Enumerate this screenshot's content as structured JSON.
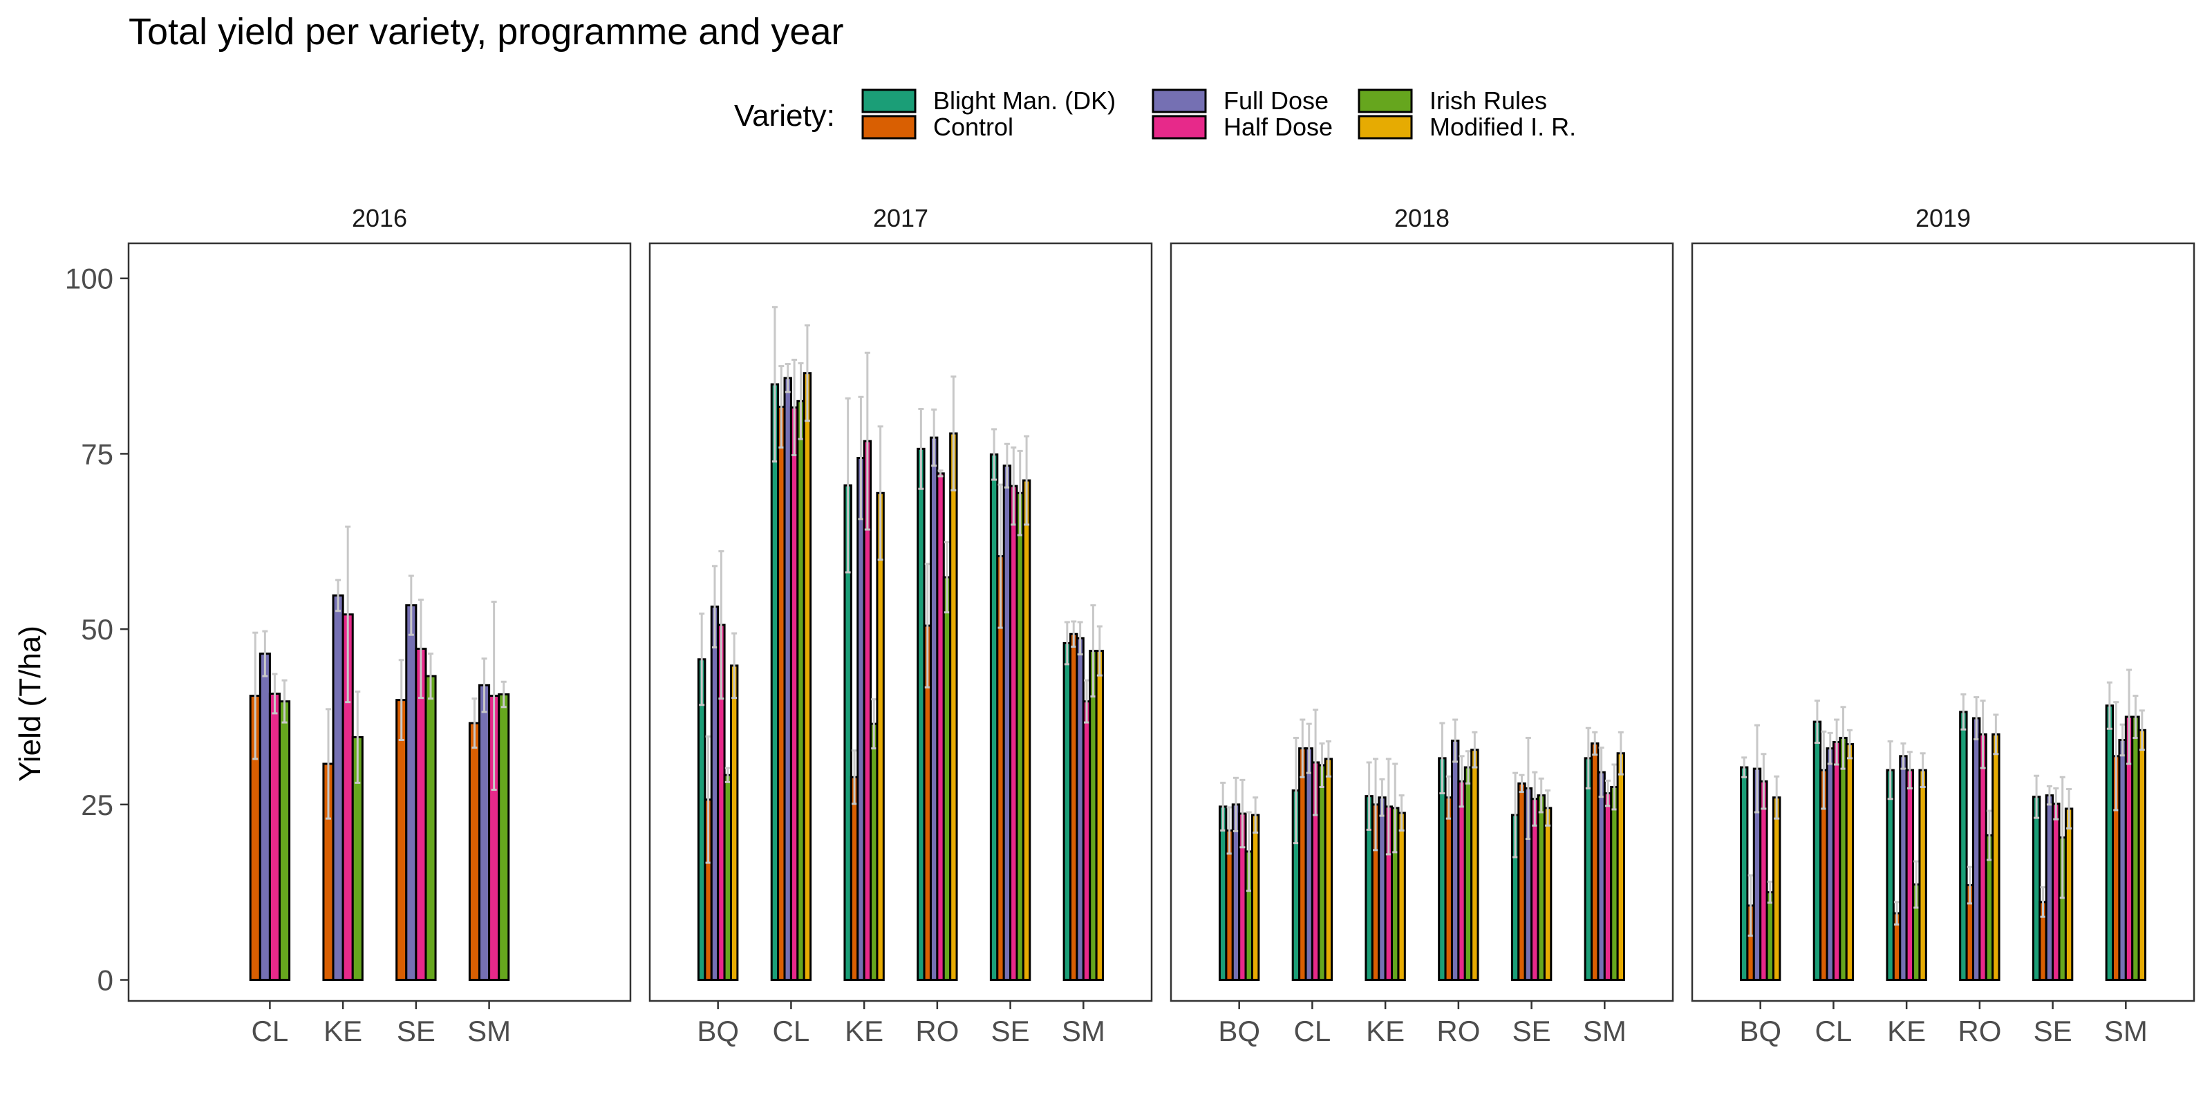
{
  "chart_data": {
    "type": "bar",
    "title": "Total yield per variety, programme and year",
    "ylabel": "Yield (T/ha)",
    "xlabel": "",
    "ylim": [
      -3,
      105
    ],
    "yticks": [
      0,
      25,
      50,
      75,
      100
    ],
    "grid": false,
    "legend": {
      "title": "Variety:",
      "placement": "top",
      "entries": [
        {
          "name": "Blight Man. (DK)",
          "color": "#1B9E77"
        },
        {
          "name": "Control",
          "color": "#D95F02"
        },
        {
          "name": "Full Dose",
          "color": "#7570B3"
        },
        {
          "name": "Half Dose",
          "color": "#E7298A"
        },
        {
          "name": "Irish Rules",
          "color": "#66A61E"
        },
        {
          "name": "Modified I. R.",
          "color": "#E6AB02"
        }
      ]
    },
    "series_order": [
      "Blight Man. (DK)",
      "Control",
      "Full Dose",
      "Half Dose",
      "Irish Rules",
      "Modified I. R."
    ],
    "panels": [
      {
        "year": "2016",
        "series_present": [
          "Control",
          "Full Dose",
          "Half Dose",
          "Irish Rules"
        ],
        "groups": [
          {
            "category": "CL",
            "values": [
              null,
              40.5,
              46.5,
              40.8,
              39.7,
              null
            ],
            "errors": [
              null,
              9,
              3.2,
              2.8,
              3,
              null
            ]
          },
          {
            "category": "KE",
            "values": [
              null,
              30.8,
              54.8,
              52.1,
              34.6,
              null
            ],
            "errors": [
              null,
              7.8,
              2.2,
              12.5,
              6.5,
              null
            ]
          },
          {
            "category": "SE",
            "values": [
              null,
              39.9,
              53.4,
              47.2,
              43.3,
              null
            ],
            "errors": [
              null,
              5.7,
              4.2,
              7,
              3.2,
              null
            ]
          },
          {
            "category": "SM",
            "values": [
              null,
              36.6,
              42,
              40.5,
              40.7,
              null
            ],
            "errors": [
              null,
              3.5,
              3.8,
              13.4,
              1.8,
              null
            ]
          }
        ]
      },
      {
        "year": "2017",
        "series_present": [
          "Blight Man. (DK)",
          "Control",
          "Full Dose",
          "Half Dose",
          "Irish Rules",
          "Modified I. R."
        ],
        "groups": [
          {
            "category": "BQ",
            "values": [
              45.7,
              25.7,
              53.2,
              50.6,
              29.2,
              44.8
            ],
            "errors": [
              6.5,
              9,
              5.8,
              10.5,
              1,
              4.6
            ]
          },
          {
            "category": "CL",
            "values": [
              84.9,
              81.7,
              85.8,
              81.6,
              82.5,
              86.5
            ],
            "errors": [
              11,
              5.8,
              2,
              6.8,
              5.4,
              6.8
            ]
          },
          {
            "category": "KE",
            "values": [
              70.5,
              28.9,
              74.4,
              76.8,
              36.5,
              69.4
            ],
            "errors": [
              12.4,
              3.8,
              8.7,
              12.6,
              3.5,
              9.5
            ]
          },
          {
            "category": "RO",
            "values": [
              75.7,
              50.5,
              77.3,
              72.2,
              57.4,
              77.9
            ],
            "errors": [
              5.7,
              8.8,
              4,
              0.4,
              5,
              8.1
            ]
          },
          {
            "category": "SE",
            "values": [
              74.9,
              60.4,
              73.3,
              70.4,
              69.4,
              71.2
            ],
            "errors": [
              3.6,
              10.2,
              3.1,
              5.5,
              6,
              6.3
            ]
          },
          {
            "category": "SM",
            "values": [
              48,
              49.3,
              48.7,
              39.7,
              46.9,
              46.9
            ],
            "errors": [
              3,
              1.8,
              2.3,
              3,
              6.5,
              3.5
            ]
          }
        ]
      },
      {
        "year": "2018",
        "series_present": [
          "Blight Man. (DK)",
          "Control",
          "Full Dose",
          "Half Dose",
          "Irish Rules",
          "Modified I. R."
        ],
        "groups": [
          {
            "category": "BQ",
            "values": [
              24.7,
              21.3,
              25,
              23.7,
              18.3,
              23.5
            ],
            "errors": [
              3.4,
              3.3,
              3.8,
              4.8,
              5.6,
              2.5
            ]
          },
          {
            "category": "CL",
            "values": [
              27,
              33,
              33,
              31,
              30.6,
              31.5
            ],
            "errors": [
              7.5,
              4.1,
              3.5,
              7.5,
              3.1,
              2.5
            ]
          },
          {
            "category": "KE",
            "values": [
              26.2,
              25,
              26,
              24.7,
              24.5,
              23.8
            ],
            "errors": [
              4.8,
              6.5,
              2.6,
              6.8,
              6.3,
              2.5
            ]
          },
          {
            "category": "RO",
            "values": [
              31.6,
              26,
              34.1,
              28.3,
              30.3,
              32.8
            ],
            "errors": [
              5,
              3,
              3,
              3.6,
              2.3,
              2.5
            ]
          },
          {
            "category": "SE",
            "values": [
              23.5,
              28,
              27.3,
              25.8,
              26.3,
              24.5
            ],
            "errors": [
              6,
              1.2,
              7.2,
              3.8,
              2.4,
              2.5
            ]
          },
          {
            "category": "SM",
            "values": [
              31.6,
              33.7,
              29.6,
              26.6,
              27.5,
              32.3
            ],
            "errors": [
              4.3,
              1.6,
              3.5,
              1.8,
              3.2,
              3
            ]
          }
        ]
      },
      {
        "year": "2019",
        "series_present": [
          "Blight Man. (DK)",
          "Control",
          "Full Dose",
          "Half Dose",
          "Irish Rules",
          "Modified I. R."
        ],
        "groups": [
          {
            "category": "BQ",
            "values": [
              30.3,
              10.6,
              30.1,
              28.3,
              12.5,
              26
            ],
            "errors": [
              1.4,
              4.3,
              6.2,
              3.9,
              1.5,
              3
            ]
          },
          {
            "category": "CL",
            "values": [
              36.8,
              29.9,
              33,
              33.9,
              34.5,
              33.6
            ],
            "errors": [
              3,
              5.5,
              2.2,
              3.2,
              4.4,
              2
            ]
          },
          {
            "category": "KE",
            "values": [
              29.9,
              9.5,
              31.9,
              29.9,
              13.6,
              29.9
            ],
            "errors": [
              4.1,
              1.6,
              1.8,
              2.6,
              3.3,
              2.4
            ]
          },
          {
            "category": "RO",
            "values": [
              38.2,
              13.5,
              37.3,
              35,
              20.6,
              35
            ],
            "errors": [
              2.5,
              2.6,
              3,
              4.8,
              3.5,
              2.8
            ]
          },
          {
            "category": "SE",
            "values": [
              26.1,
              11.1,
              26.3,
              25.1,
              20.3,
              24.4
            ],
            "errors": [
              3,
              2.1,
              1.3,
              2.2,
              8.6,
              2.8
            ]
          },
          {
            "category": "SM",
            "values": [
              39.1,
              31.9,
              34.2,
              37.5,
              37.5,
              35.6
            ],
            "errors": [
              3.3,
              7.7,
              2.2,
              6.7,
              3,
              2.8
            ]
          }
        ]
      }
    ]
  }
}
